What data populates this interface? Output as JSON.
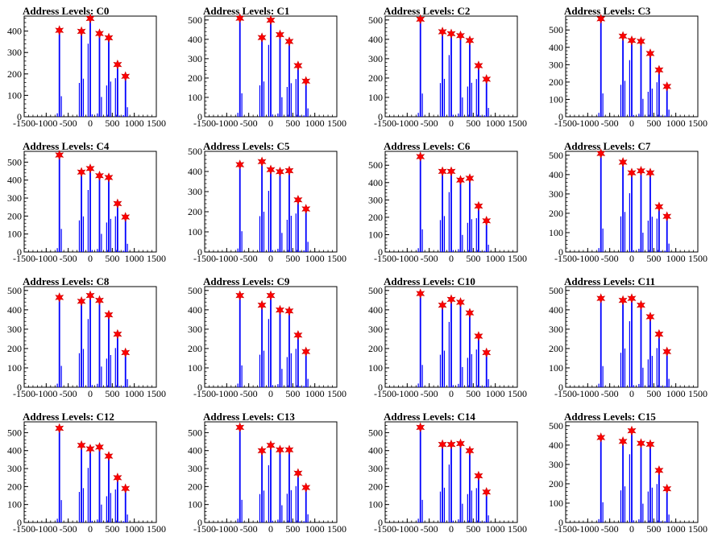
{
  "layout": {
    "cols": 4,
    "rows": 4
  },
  "chart_data": [
    {
      "type": "bar",
      "title": "Address Levels: C0",
      "xlim": [
        -1500,
        1500
      ],
      "ylim": [
        0,
        470
      ],
      "xticks": [
        -1500,
        -1000,
        -500,
        0,
        500,
        1000,
        1500
      ],
      "yticks": [
        0,
        100,
        200,
        300,
        400
      ],
      "peaks": [
        {
          "x": -700,
          "y": 400
        },
        {
          "x": -200,
          "y": 395
        },
        {
          "x": 0,
          "y": 455
        },
        {
          "x": 210,
          "y": 385
        },
        {
          "x": 420,
          "y": 365
        },
        {
          "x": 620,
          "y": 240
        },
        {
          "x": 800,
          "y": 185
        }
      ]
    },
    {
      "type": "bar",
      "title": "Address Levels: C1",
      "xlim": [
        -1500,
        1500
      ],
      "ylim": [
        0,
        520
      ],
      "xticks": [
        -1500,
        -1000,
        -500,
        0,
        500,
        1000,
        1500
      ],
      "yticks": [
        0,
        100,
        200,
        300,
        400,
        500
      ],
      "peaks": [
        {
          "x": -700,
          "y": 505
        },
        {
          "x": -200,
          "y": 405
        },
        {
          "x": 0,
          "y": 495
        },
        {
          "x": 210,
          "y": 420
        },
        {
          "x": 420,
          "y": 385
        },
        {
          "x": 620,
          "y": 260
        },
        {
          "x": 800,
          "y": 180
        }
      ]
    },
    {
      "type": "bar",
      "title": "Address Levels: C2",
      "xlim": [
        -1500,
        1500
      ],
      "ylim": [
        0,
        520
      ],
      "xticks": [
        -1500,
        -1000,
        -500,
        0,
        500,
        1000,
        1500
      ],
      "yticks": [
        0,
        100,
        200,
        300,
        400,
        500
      ],
      "peaks": [
        {
          "x": -700,
          "y": 500
        },
        {
          "x": -200,
          "y": 435
        },
        {
          "x": 0,
          "y": 425
        },
        {
          "x": 210,
          "y": 415
        },
        {
          "x": 420,
          "y": 390
        },
        {
          "x": 620,
          "y": 260
        },
        {
          "x": 800,
          "y": 190
        }
      ]
    },
    {
      "type": "bar",
      "title": "Address Levels: C3",
      "xlim": [
        -1500,
        1500
      ],
      "ylim": [
        0,
        580
      ],
      "xticks": [
        -1500,
        -1000,
        -500,
        0,
        500,
        1000,
        1500
      ],
      "yticks": [
        0,
        100,
        200,
        300,
        400,
        500
      ],
      "peaks": [
        {
          "x": -700,
          "y": 560
        },
        {
          "x": -200,
          "y": 460
        },
        {
          "x": 0,
          "y": 435
        },
        {
          "x": 210,
          "y": 430
        },
        {
          "x": 420,
          "y": 360
        },
        {
          "x": 620,
          "y": 265
        },
        {
          "x": 800,
          "y": 170
        }
      ]
    },
    {
      "type": "bar",
      "title": "Address Levels: C4",
      "xlim": [
        -1500,
        1500
      ],
      "ylim": [
        0,
        560
      ],
      "xticks": [
        -1500,
        -1000,
        -500,
        0,
        500,
        1000,
        1500
      ],
      "yticks": [
        0,
        100,
        200,
        300,
        400,
        500
      ],
      "peaks": [
        {
          "x": -700,
          "y": 535
        },
        {
          "x": -200,
          "y": 440
        },
        {
          "x": 0,
          "y": 460
        },
        {
          "x": 210,
          "y": 420
        },
        {
          "x": 420,
          "y": 410
        },
        {
          "x": 620,
          "y": 265
        },
        {
          "x": 800,
          "y": 190
        }
      ]
    },
    {
      "type": "bar",
      "title": "Address Levels: C5",
      "xlim": [
        -1500,
        1500
      ],
      "ylim": [
        0,
        500
      ],
      "xticks": [
        -1500,
        -1000,
        -500,
        0,
        500,
        1000,
        1500
      ],
      "yticks": [
        0,
        100,
        200,
        300,
        400,
        500
      ],
      "peaks": [
        {
          "x": -700,
          "y": 430
        },
        {
          "x": -200,
          "y": 445
        },
        {
          "x": 0,
          "y": 405
        },
        {
          "x": 210,
          "y": 395
        },
        {
          "x": 420,
          "y": 400
        },
        {
          "x": 620,
          "y": 255
        },
        {
          "x": 800,
          "y": 210
        }
      ]
    },
    {
      "type": "bar",
      "title": "Address Levels: C6",
      "xlim": [
        -1500,
        1500
      ],
      "ylim": [
        0,
        580
      ],
      "xticks": [
        -1500,
        -1000,
        -500,
        0,
        500,
        1000,
        1500
      ],
      "yticks": [
        0,
        100,
        200,
        300,
        400,
        500
      ],
      "peaks": [
        {
          "x": -700,
          "y": 545
        },
        {
          "x": -200,
          "y": 460
        },
        {
          "x": 0,
          "y": 460
        },
        {
          "x": 210,
          "y": 410
        },
        {
          "x": 420,
          "y": 420
        },
        {
          "x": 620,
          "y": 260
        },
        {
          "x": 800,
          "y": 175
        }
      ]
    },
    {
      "type": "bar",
      "title": "Address Levels: C7",
      "xlim": [
        -1500,
        1500
      ],
      "ylim": [
        0,
        520
      ],
      "xticks": [
        -1500,
        -1000,
        -500,
        0,
        500,
        1000,
        1500
      ],
      "yticks": [
        0,
        100,
        200,
        300,
        400,
        500
      ],
      "peaks": [
        {
          "x": -700,
          "y": 505
        },
        {
          "x": -200,
          "y": 460
        },
        {
          "x": 0,
          "y": 405
        },
        {
          "x": 210,
          "y": 415
        },
        {
          "x": 420,
          "y": 405
        },
        {
          "x": 620,
          "y": 230
        },
        {
          "x": 800,
          "y": 180
        }
      ]
    },
    {
      "type": "bar",
      "title": "Address Levels: C8",
      "xlim": [
        -1500,
        1500
      ],
      "ylim": [
        0,
        520
      ],
      "xticks": [
        -1500,
        -1000,
        -500,
        0,
        500,
        1000,
        1500
      ],
      "yticks": [
        0,
        100,
        200,
        300,
        400,
        500
      ],
      "peaks": [
        {
          "x": -700,
          "y": 460
        },
        {
          "x": -200,
          "y": 440
        },
        {
          "x": 0,
          "y": 470
        },
        {
          "x": 210,
          "y": 445
        },
        {
          "x": 420,
          "y": 370
        },
        {
          "x": 620,
          "y": 270
        },
        {
          "x": 800,
          "y": 175
        }
      ]
    },
    {
      "type": "bar",
      "title": "Address Levels: C9",
      "xlim": [
        -1500,
        1500
      ],
      "ylim": [
        0,
        520
      ],
      "xticks": [
        -1500,
        -1000,
        -500,
        0,
        500,
        1000,
        1500
      ],
      "yticks": [
        0,
        100,
        200,
        300,
        400,
        500
      ],
      "peaks": [
        {
          "x": -700,
          "y": 470
        },
        {
          "x": -200,
          "y": 420
        },
        {
          "x": 0,
          "y": 470
        },
        {
          "x": 210,
          "y": 395
        },
        {
          "x": 420,
          "y": 390
        },
        {
          "x": 620,
          "y": 265
        },
        {
          "x": 800,
          "y": 180
        }
      ]
    },
    {
      "type": "bar",
      "title": "Address Levels: C10",
      "xlim": [
        -1500,
        1500
      ],
      "ylim": [
        0,
        520
      ],
      "xticks": [
        -1500,
        -1000,
        -500,
        0,
        500,
        1000,
        1500
      ],
      "yticks": [
        0,
        100,
        200,
        300,
        400,
        500
      ],
      "peaks": [
        {
          "x": -700,
          "y": 480
        },
        {
          "x": -200,
          "y": 420
        },
        {
          "x": 0,
          "y": 450
        },
        {
          "x": 210,
          "y": 435
        },
        {
          "x": 420,
          "y": 380
        },
        {
          "x": 620,
          "y": 260
        },
        {
          "x": 800,
          "y": 175
        }
      ]
    },
    {
      "type": "bar",
      "title": "Address Levels: C11",
      "xlim": [
        -1500,
        1500
      ],
      "ylim": [
        0,
        520
      ],
      "xticks": [
        -1500,
        -1000,
        -500,
        0,
        500,
        1000,
        1500
      ],
      "yticks": [
        0,
        100,
        200,
        300,
        400,
        500
      ],
      "peaks": [
        {
          "x": -700,
          "y": 455
        },
        {
          "x": -200,
          "y": 445
        },
        {
          "x": 0,
          "y": 455
        },
        {
          "x": 210,
          "y": 420
        },
        {
          "x": 420,
          "y": 360
        },
        {
          "x": 620,
          "y": 270
        },
        {
          "x": 800,
          "y": 180
        }
      ]
    },
    {
      "type": "bar",
      "title": "Address Levels: C12",
      "xlim": [
        -1500,
        1500
      ],
      "ylim": [
        0,
        560
      ],
      "xticks": [
        -1500,
        -1000,
        -500,
        0,
        500,
        1000,
        1500
      ],
      "yticks": [
        0,
        100,
        200,
        300,
        400,
        500
      ],
      "peaks": [
        {
          "x": -700,
          "y": 520
        },
        {
          "x": -200,
          "y": 425
        },
        {
          "x": 0,
          "y": 405
        },
        {
          "x": 210,
          "y": 415
        },
        {
          "x": 420,
          "y": 365
        },
        {
          "x": 620,
          "y": 245
        },
        {
          "x": 800,
          "y": 185
        }
      ]
    },
    {
      "type": "bar",
      "title": "Address Levels: C13",
      "xlim": [
        -1500,
        1500
      ],
      "ylim": [
        0,
        560
      ],
      "xticks": [
        -1500,
        -1000,
        -500,
        0,
        500,
        1000,
        1500
      ],
      "yticks": [
        0,
        100,
        200,
        300,
        400,
        500
      ],
      "peaks": [
        {
          "x": -700,
          "y": 525
        },
        {
          "x": -200,
          "y": 395
        },
        {
          "x": 0,
          "y": 425
        },
        {
          "x": 210,
          "y": 400
        },
        {
          "x": 420,
          "y": 400
        },
        {
          "x": 620,
          "y": 270
        },
        {
          "x": 800,
          "y": 190
        }
      ]
    },
    {
      "type": "bar",
      "title": "Address Levels: C14",
      "xlim": [
        -1500,
        1500
      ],
      "ylim": [
        0,
        560
      ],
      "xticks": [
        -1500,
        -1000,
        -500,
        0,
        500,
        1000,
        1500
      ],
      "yticks": [
        0,
        100,
        200,
        300,
        400,
        500
      ],
      "peaks": [
        {
          "x": -700,
          "y": 525
        },
        {
          "x": -200,
          "y": 430
        },
        {
          "x": 0,
          "y": 430
        },
        {
          "x": 210,
          "y": 435
        },
        {
          "x": 420,
          "y": 395
        },
        {
          "x": 620,
          "y": 255
        },
        {
          "x": 800,
          "y": 165
        }
      ]
    },
    {
      "type": "bar",
      "title": "Address Levels: C15",
      "xlim": [
        -1500,
        1500
      ],
      "ylim": [
        0,
        520
      ],
      "xticks": [
        -1500,
        -1000,
        -500,
        0,
        500,
        1000,
        1500
      ],
      "yticks": [
        0,
        100,
        200,
        300,
        400,
        500
      ],
      "peaks": [
        {
          "x": -700,
          "y": 435
        },
        {
          "x": -200,
          "y": 415
        },
        {
          "x": 0,
          "y": 470
        },
        {
          "x": 210,
          "y": 405
        },
        {
          "x": 420,
          "y": 400
        },
        {
          "x": 620,
          "y": 265
        },
        {
          "x": 800,
          "y": 170
        }
      ]
    }
  ],
  "colors": {
    "bars": "#0000ff",
    "markers": "#ff0000",
    "marker_edge": "#cc0000",
    "axes": "#000000"
  }
}
